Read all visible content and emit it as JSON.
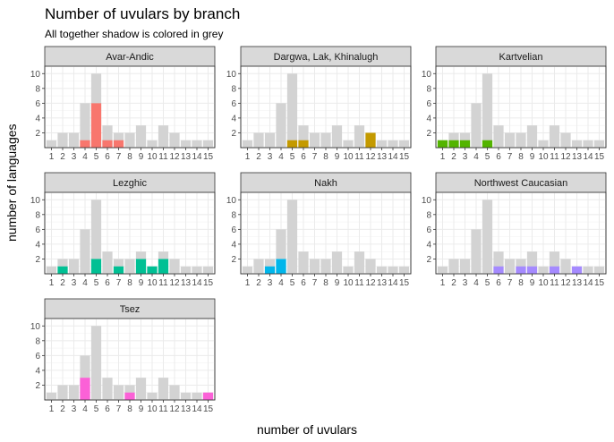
{
  "chart_data": {
    "type": "bar",
    "title": "Number of uvulars by branch",
    "subtitle": "All together shadow is colored in grey",
    "xlabel": "number of uvulars",
    "ylabel": "number of languages",
    "x": [
      1,
      2,
      3,
      4,
      5,
      6,
      7,
      8,
      9,
      10,
      11,
      12,
      13,
      14,
      15
    ],
    "x_tick_labels": [
      "1",
      "2",
      "3",
      "4",
      "5",
      "6",
      "7",
      "8",
      "9",
      "10",
      "11",
      "12",
      "13",
      "14",
      "15"
    ],
    "y_ticks": [
      2,
      4,
      6,
      8,
      10
    ],
    "y_tick_labels": [
      "2",
      "4",
      "6",
      "8",
      "10"
    ],
    "ylim": [
      0,
      11
    ],
    "grid": true,
    "shadow_color": "#d3d3d3",
    "shadow_values": [
      1,
      2,
      2,
      6,
      10,
      3,
      2,
      2,
      3,
      1,
      3,
      2,
      1,
      1,
      1
    ],
    "panels": [
      {
        "name": "Avar-Andic",
        "color": "#F8766D",
        "values": [
          0,
          0,
          0,
          1,
          6,
          1,
          1,
          0,
          0,
          0,
          0,
          0,
          0,
          0,
          0
        ]
      },
      {
        "name": "Dargwa, Lak, Khinalugh",
        "color": "#C49A00",
        "values": [
          0,
          0,
          0,
          0,
          1,
          1,
          0,
          0,
          0,
          0,
          0,
          2,
          0,
          0,
          0
        ]
      },
      {
        "name": "Kartvelian",
        "color": "#53B400",
        "values": [
          1,
          1,
          1,
          0,
          1,
          0,
          0,
          0,
          0,
          0,
          0,
          0,
          0,
          0,
          0
        ]
      },
      {
        "name": "Lezghic",
        "color": "#00C094",
        "values": [
          0,
          1,
          0,
          0,
          2,
          0,
          1,
          0,
          2,
          1,
          2,
          0,
          0,
          0,
          0
        ]
      },
      {
        "name": "Nakh",
        "color": "#00B6EB",
        "values": [
          0,
          0,
          1,
          2,
          0,
          0,
          0,
          0,
          0,
          0,
          0,
          0,
          0,
          0,
          0
        ]
      },
      {
        "name": "Northwest Caucasian",
        "color": "#A58AFF",
        "values": [
          0,
          0,
          0,
          0,
          0,
          1,
          0,
          1,
          1,
          0,
          1,
          0,
          1,
          0,
          0
        ]
      },
      {
        "name": "Tsez",
        "color": "#FB61D7",
        "values": [
          0,
          0,
          0,
          3,
          0,
          0,
          0,
          1,
          0,
          0,
          0,
          0,
          0,
          0,
          1
        ]
      }
    ]
  }
}
